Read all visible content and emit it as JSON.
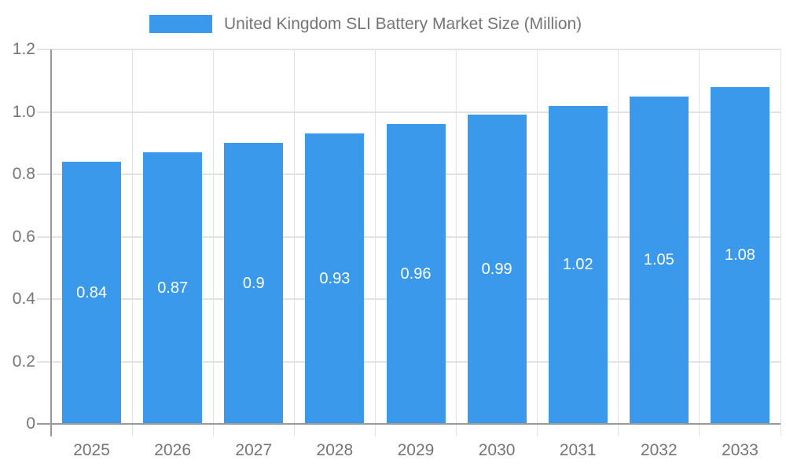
{
  "legend": {
    "label": "United Kingdom SLI Battery Market Size (Million)",
    "swatch_color": "#3b99ec"
  },
  "chart_data": {
    "type": "bar",
    "title": "United Kingdom SLI Battery Market Size (Million)",
    "categories": [
      "2025",
      "2026",
      "2027",
      "2028",
      "2029",
      "2030",
      "2031",
      "2032",
      "2033"
    ],
    "series": [
      {
        "name": "United Kingdom SLI Battery Market Size (Million)",
        "values": [
          0.84,
          0.87,
          0.9,
          0.93,
          0.96,
          0.99,
          1.02,
          1.05,
          1.08
        ],
        "labels": [
          "0.84",
          "0.87",
          "0.9",
          "0.93",
          "0.96",
          "0.99",
          "1.02",
          "1.05",
          "1.08"
        ],
        "color": "#3b99ec"
      }
    ],
    "xlabel": "",
    "ylabel": "",
    "ylim": [
      0,
      1.2
    ],
    "yticks": [
      0,
      0.2,
      0.4,
      0.6,
      0.8,
      1.0,
      1.2
    ],
    "ytick_labels": [
      "0",
      "0.2",
      "0.4",
      "0.6",
      "0.8",
      "1.0",
      "1.2"
    ],
    "grid": true,
    "legend_position": "top"
  },
  "colors": {
    "bar": "#3b99ec",
    "axis_line": "#999999",
    "gridline": "#e3e3e3",
    "tick_text": "#757575",
    "bar_label": "#ffffff",
    "background": "#ffffff"
  }
}
